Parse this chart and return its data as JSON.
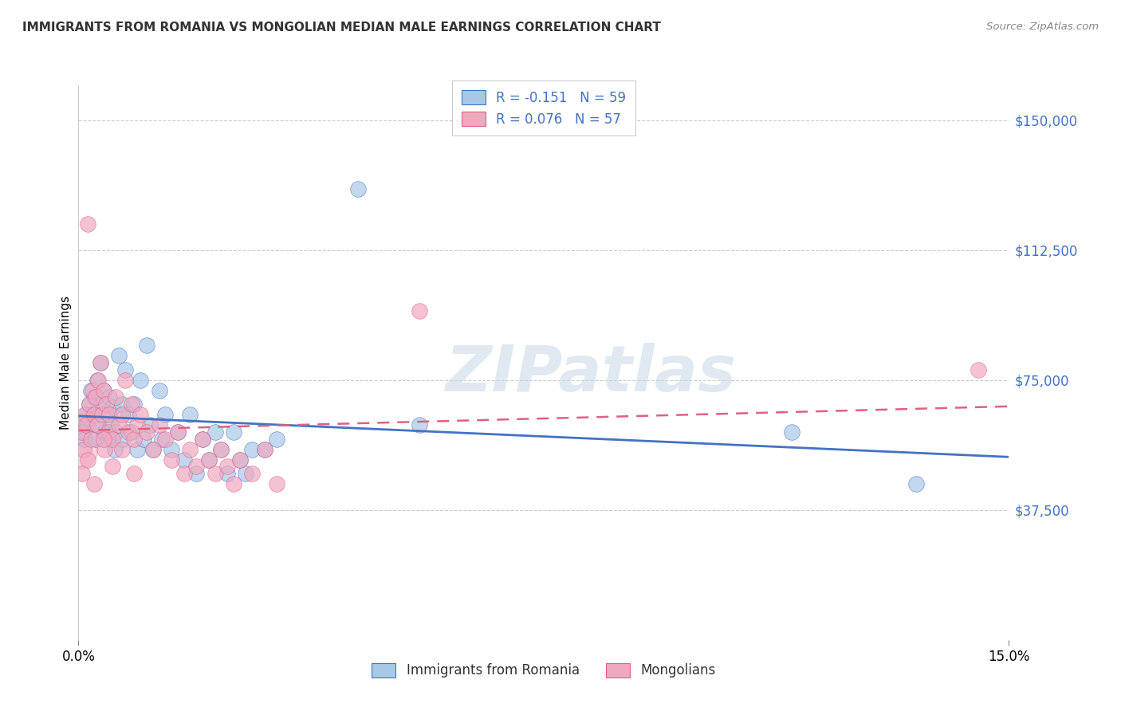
{
  "title": "IMMIGRANTS FROM ROMANIA VS MONGOLIAN MEDIAN MALE EARNINGS CORRELATION CHART",
  "source": "Source: ZipAtlas.com",
  "ylabel": "Median Male Earnings",
  "yticks": [
    0,
    37500,
    75000,
    112500,
    150000
  ],
  "ytick_labels": [
    "",
    "$37,500",
    "$75,000",
    "$112,500",
    "$150,000"
  ],
  "xlim": [
    0.0,
    15.0
  ],
  "ylim": [
    0,
    160000
  ],
  "romania_R": -0.151,
  "romania_N": 59,
  "mongolia_R": 0.076,
  "mongolia_N": 57,
  "romania_color": "#a8c8e8",
  "mongolia_color": "#f0a8c0",
  "romania_line_color": "#4472c4",
  "mongolia_line_color": "#e06080",
  "background_color": "#ffffff",
  "grid_color": "#cccccc",
  "watermark": "ZIPatlas",
  "romania_x": [
    0.05,
    0.08,
    0.1,
    0.12,
    0.15,
    0.18,
    0.2,
    0.22,
    0.25,
    0.28,
    0.3,
    0.32,
    0.35,
    0.38,
    0.4,
    0.42,
    0.45,
    0.48,
    0.5,
    0.52,
    0.55,
    0.58,
    0.6,
    0.65,
    0.7,
    0.72,
    0.75,
    0.8,
    0.85,
    0.9,
    0.95,
    1.0,
    1.05,
    1.1,
    1.15,
    1.2,
    1.3,
    1.35,
    1.4,
    1.5,
    1.6,
    1.7,
    1.8,
    1.9,
    2.0,
    2.1,
    2.2,
    2.3,
    2.4,
    2.5,
    2.6,
    2.7,
    2.8,
    3.0,
    3.2,
    4.5,
    5.5,
    11.5,
    13.5
  ],
  "romania_y": [
    63000,
    60000,
    58000,
    65000,
    62000,
    68000,
    72000,
    65000,
    70000,
    58000,
    75000,
    62000,
    80000,
    68000,
    72000,
    60000,
    65000,
    58000,
    70000,
    62000,
    67000,
    55000,
    60000,
    82000,
    68000,
    58000,
    78000,
    65000,
    60000,
    68000,
    55000,
    75000,
    58000,
    85000,
    62000,
    55000,
    72000,
    58000,
    65000,
    55000,
    60000,
    52000,
    65000,
    48000,
    58000,
    52000,
    60000,
    55000,
    48000,
    60000,
    52000,
    48000,
    55000,
    55000,
    58000,
    130000,
    62000,
    60000,
    45000
  ],
  "mongolia_x": [
    0.05,
    0.08,
    0.1,
    0.12,
    0.15,
    0.18,
    0.2,
    0.22,
    0.25,
    0.28,
    0.3,
    0.32,
    0.35,
    0.38,
    0.4,
    0.42,
    0.45,
    0.48,
    0.5,
    0.55,
    0.6,
    0.65,
    0.7,
    0.75,
    0.8,
    0.85,
    0.9,
    0.95,
    1.0,
    1.1,
    1.2,
    1.3,
    1.4,
    1.5,
    1.6,
    1.7,
    1.8,
    1.9,
    2.0,
    2.1,
    2.2,
    2.3,
    2.4,
    2.5,
    2.6,
    2.8,
    3.0,
    3.2,
    5.5,
    0.06,
    0.15,
    0.25,
    0.4,
    0.55,
    0.7,
    0.9,
    14.5
  ],
  "mongolia_y": [
    60000,
    55000,
    65000,
    62000,
    120000,
    68000,
    58000,
    72000,
    65000,
    70000,
    62000,
    75000,
    80000,
    65000,
    72000,
    55000,
    68000,
    60000,
    65000,
    58000,
    70000,
    62000,
    65000,
    75000,
    60000,
    68000,
    58000,
    62000,
    65000,
    60000,
    55000,
    62000,
    58000,
    52000,
    60000,
    48000,
    55000,
    50000,
    58000,
    52000,
    48000,
    55000,
    50000,
    45000,
    52000,
    48000,
    55000,
    45000,
    95000,
    48000,
    52000,
    45000,
    58000,
    50000,
    55000,
    48000,
    78000
  ],
  "mongolia_bubble_x": 0.0,
  "mongolia_bubble_y": 55000,
  "mongolia_bubble_size": 1200
}
